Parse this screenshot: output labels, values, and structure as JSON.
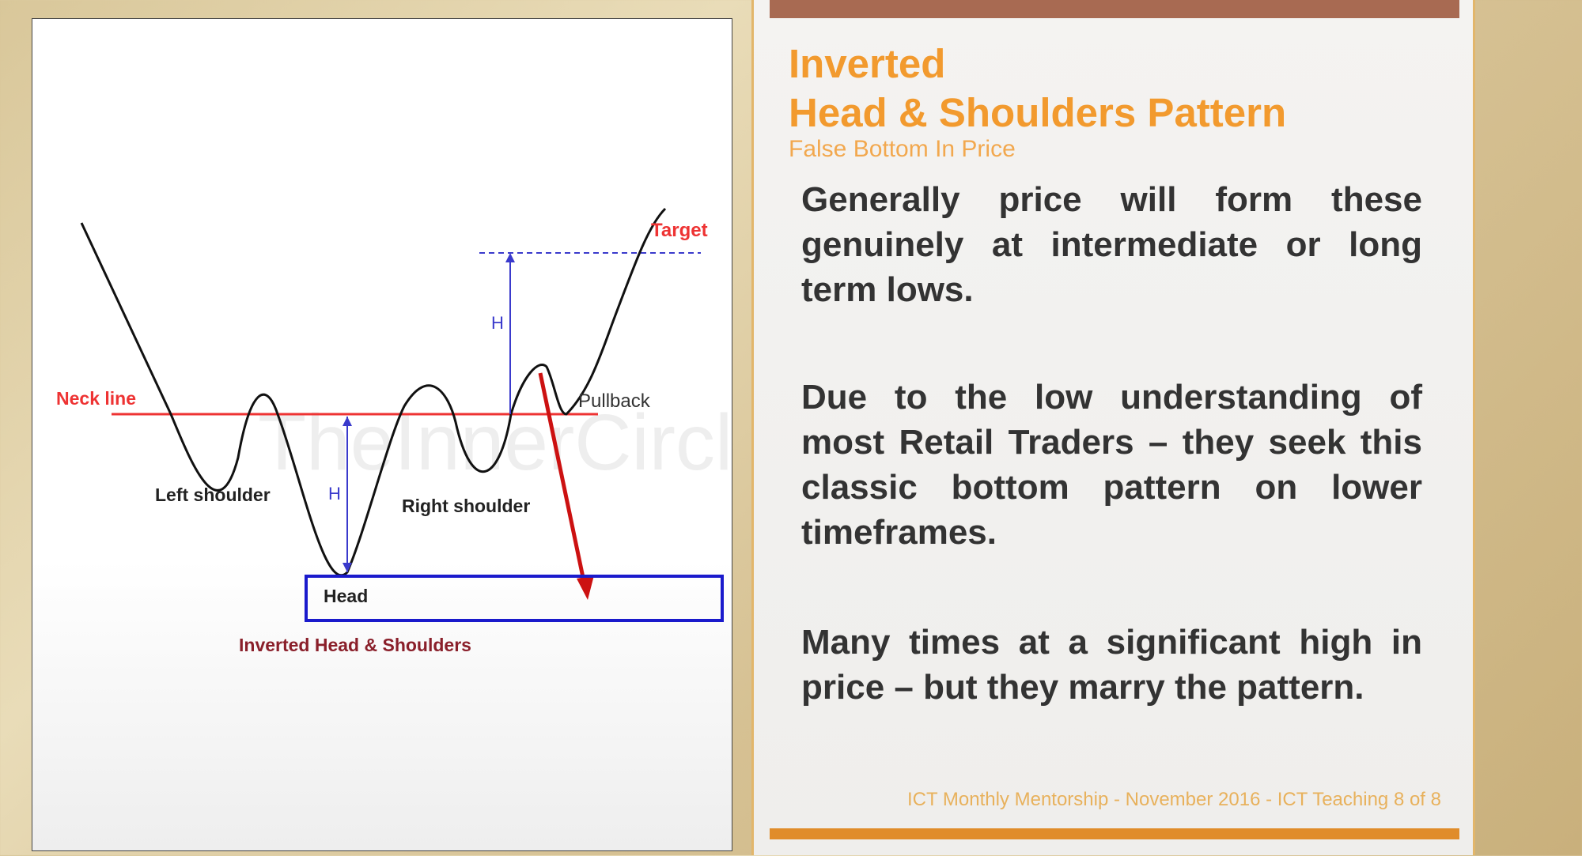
{
  "diagram": {
    "labels": {
      "target": "Target",
      "neck_line": "Neck line",
      "pullback": "Pullback",
      "h_upper": "H",
      "h_lower": "H",
      "left_shoulder": "Left shoulder",
      "right_shoulder": "Right shoulder",
      "head": "Head",
      "caption": "Inverted Head & Shoulders"
    },
    "watermark": "TheInnerCircleTrader.com",
    "colors": {
      "price_line": "#111111",
      "neck_line": "#ee3333",
      "target_line": "#3a3acc",
      "measure_arrow": "#3a3acc",
      "head_box": "#1a1acc",
      "pullback_arrow": "#cc1111",
      "caption": "#8a1f2a"
    }
  },
  "slide": {
    "title_line1": "Inverted",
    "title_line2": "Head & Shoulders Pattern",
    "subtitle": "False Bottom In Price",
    "paragraphs": [
      "Generally price will form these genuinely at intermediate or long term lows.",
      "Due to the low understanding of most Retail Traders – they seek this classic bottom pattern on lower timeframes.",
      "Many times at a significant high in price – but they marry the pattern."
    ],
    "footer": "ICT Monthly Mentorship - November 2016 - ICT Teaching 8 of 8",
    "colors": {
      "title": "#f29a2e",
      "subtitle": "#f2a84e",
      "body": "#333333",
      "footer": "#e8b15c",
      "top_bar": "#a86a52",
      "bottom_bar": "#e08c2a"
    }
  }
}
